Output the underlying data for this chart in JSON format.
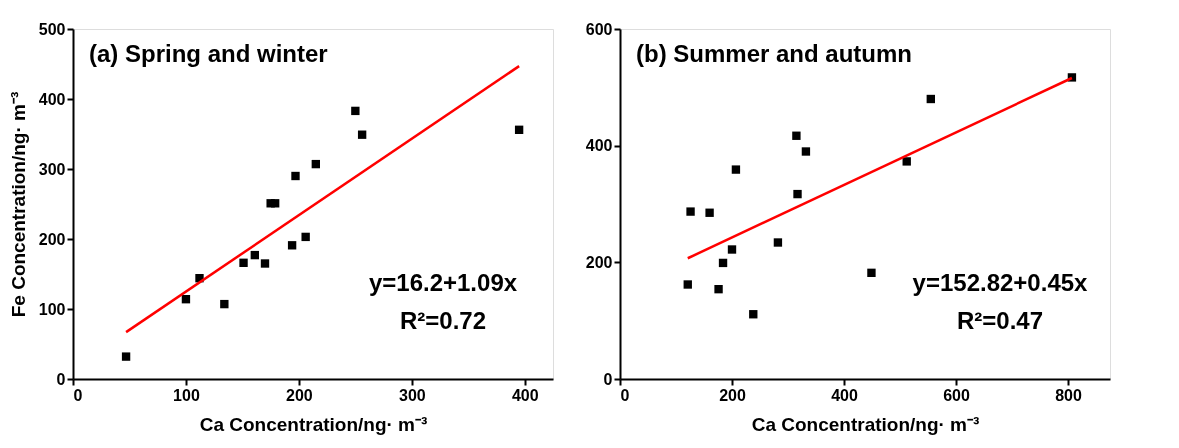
{
  "chart_data": [
    {
      "type": "scatter",
      "title": "(a) Spring and winter",
      "xlabel": "Ca Concentration/ng· m⁻³",
      "ylabel": "Fe Concentration/ng· m⁻³",
      "xlim": [
        0,
        425
      ],
      "ylim": [
        0,
        500
      ],
      "xticks": [
        0,
        100,
        200,
        300,
        400
      ],
      "yticks": [
        0,
        100,
        200,
        300,
        400,
        500
      ],
      "grid": false,
      "annotations": [
        "y=16.2+1.09x",
        "R²=0.72"
      ],
      "series": [
        {
          "marker": "square",
          "color": "#000000",
          "x": [
            47,
            100,
            112,
            134,
            151,
            161,
            170,
            175,
            179,
            194,
            197,
            206,
            215,
            250,
            256,
            395
          ],
          "values": [
            32,
            114,
            144,
            107,
            166,
            177,
            165,
            251,
            251,
            191,
            290,
            203,
            307,
            383,
            349,
            356
          ]
        },
        {
          "type": "line",
          "color": "#ff0000",
          "line_style": "solid",
          "x": [
            47,
            395
          ],
          "values": [
            67,
            447
          ]
        }
      ]
    },
    {
      "type": "scatter",
      "title": "(b) Summer and autumn",
      "xlabel": "Ca Concentration/ng· m⁻³",
      "xlim": [
        0,
        875
      ],
      "ylim": [
        0,
        600
      ],
      "xticks": [
        0,
        200,
        400,
        600,
        800
      ],
      "yticks": [
        0,
        200,
        400,
        600
      ],
      "grid": false,
      "annotations": [
        "y=152.82+0.45x",
        "R²=0.47"
      ],
      "series": [
        {
          "marker": "square",
          "color": "#000000",
          "x": [
            121,
            126,
            160,
            176,
            184,
            200,
            207,
            238,
            282,
            315,
            317,
            332,
            449,
            512,
            555,
            807
          ],
          "values": [
            162,
            287,
            285,
            154,
            199,
            222,
            359,
            111,
            234,
            417,
            317,
            390,
            182,
            373,
            480,
            517
          ]
        },
        {
          "type": "line",
          "color": "#ff0000",
          "line_style": "solid",
          "x": [
            121,
            807
          ],
          "values": [
            207,
            516
          ]
        }
      ]
    }
  ]
}
